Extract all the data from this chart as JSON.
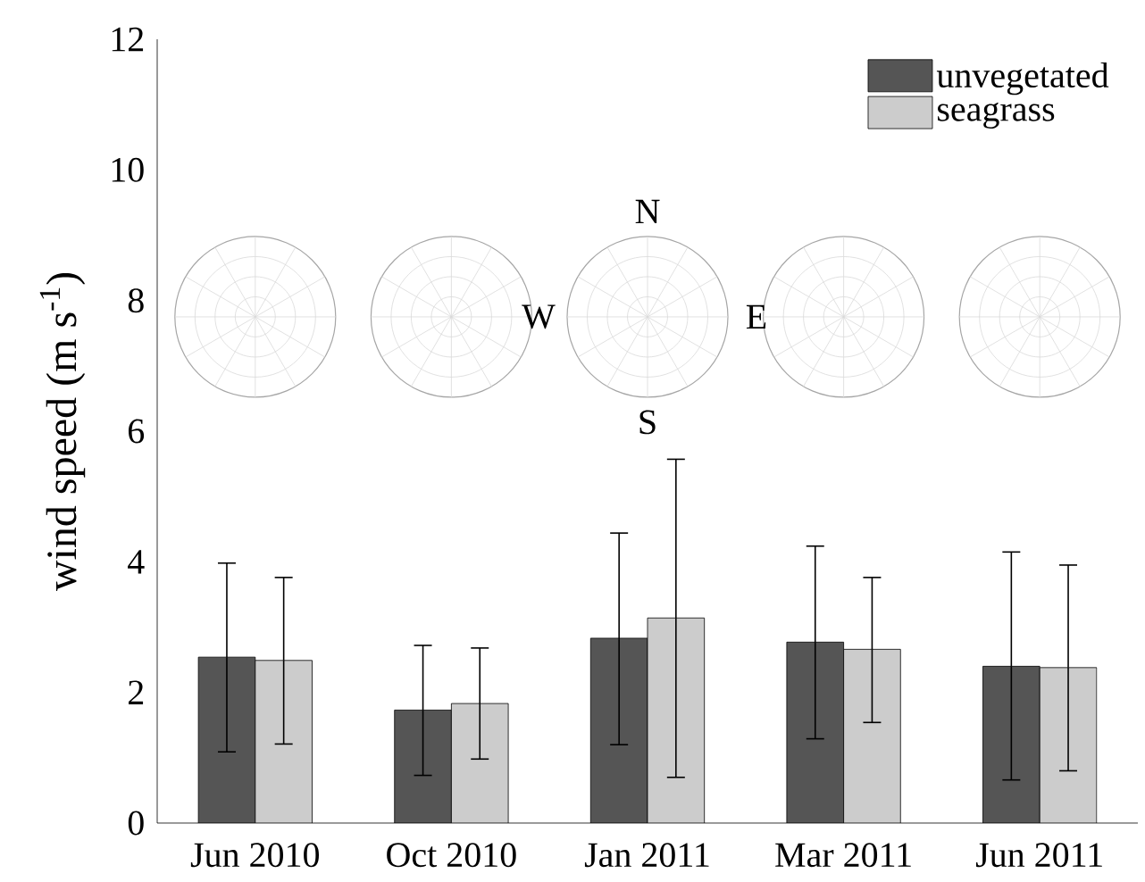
{
  "chart_data": {
    "type": "bar",
    "ylabel": "wind speed (m s$^{-1}$)",
    "categories": [
      "Jun 2010",
      "Oct 2010",
      "Jan 2011",
      "Mar 2011",
      "Jun 2011"
    ],
    "series": [
      {
        "name": "unvegetated",
        "color": "#555555",
        "values": [
          2.54,
          1.73,
          2.83,
          2.77,
          2.4
        ],
        "errors": [
          [
            1.09,
            3.98
          ],
          [
            0.73,
            2.72
          ],
          [
            1.2,
            4.44
          ],
          [
            1.29,
            4.24
          ],
          [
            0.66,
            4.15
          ]
        ]
      },
      {
        "name": "seagrass",
        "color": "#cccccc",
        "values": [
          2.49,
          1.83,
          3.14,
          2.66,
          2.38
        ],
        "errors": [
          [
            1.21,
            3.76
          ],
          [
            0.98,
            2.68
          ],
          [
            0.7,
            5.57
          ],
          [
            1.54,
            3.76
          ],
          [
            0.8,
            3.95
          ]
        ]
      }
    ],
    "ylim": [
      0,
      12
    ],
    "yticks": [
      0,
      2,
      4,
      6,
      8,
      10,
      12
    ],
    "legend": "top right",
    "annotations": [
      "N",
      "W",
      "E",
      "S"
    ]
  }
}
